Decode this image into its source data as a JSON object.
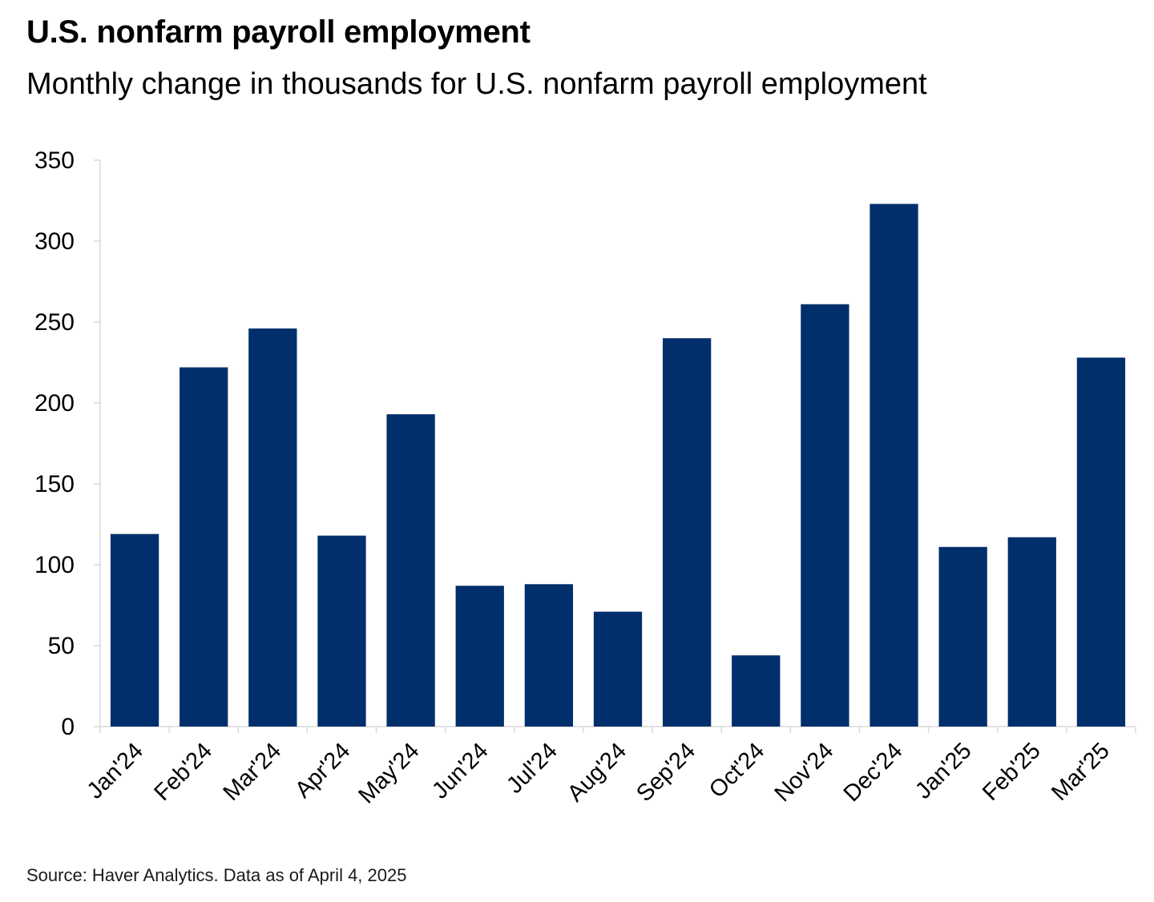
{
  "header": {
    "title": "U.S. nonfarm payroll employment",
    "subtitle": "Monthly change in thousands for U.S. nonfarm payroll employment"
  },
  "footer": {
    "source": "Source: Haver Analytics. Data as of April 4, 2025"
  },
  "colors": {
    "bar": "#002f6c",
    "axis": "#d9d9d9",
    "text": "#000000"
  },
  "chart_data": {
    "type": "bar",
    "title": "U.S. nonfarm payroll employment",
    "subtitle": "Monthly change in thousands for U.S. nonfarm payroll employment",
    "categories": [
      "Jan'24",
      "Feb'24",
      "Mar'24",
      "Apr'24",
      "May'24",
      "Jun'24",
      "Jul'24",
      "Aug'24",
      "Sep'24",
      "Oct'24",
      "Nov'24",
      "Dec'24",
      "Jan'25",
      "Feb'25",
      "Mar'25"
    ],
    "values": [
      119,
      222,
      246,
      118,
      193,
      87,
      88,
      71,
      240,
      44,
      261,
      323,
      111,
      117,
      228
    ],
    "yticks": [
      0,
      50,
      100,
      150,
      200,
      250,
      300,
      350
    ],
    "ylim": [
      0,
      350
    ],
    "xlabel": "",
    "ylabel": "",
    "grid": false,
    "legend": "none"
  }
}
